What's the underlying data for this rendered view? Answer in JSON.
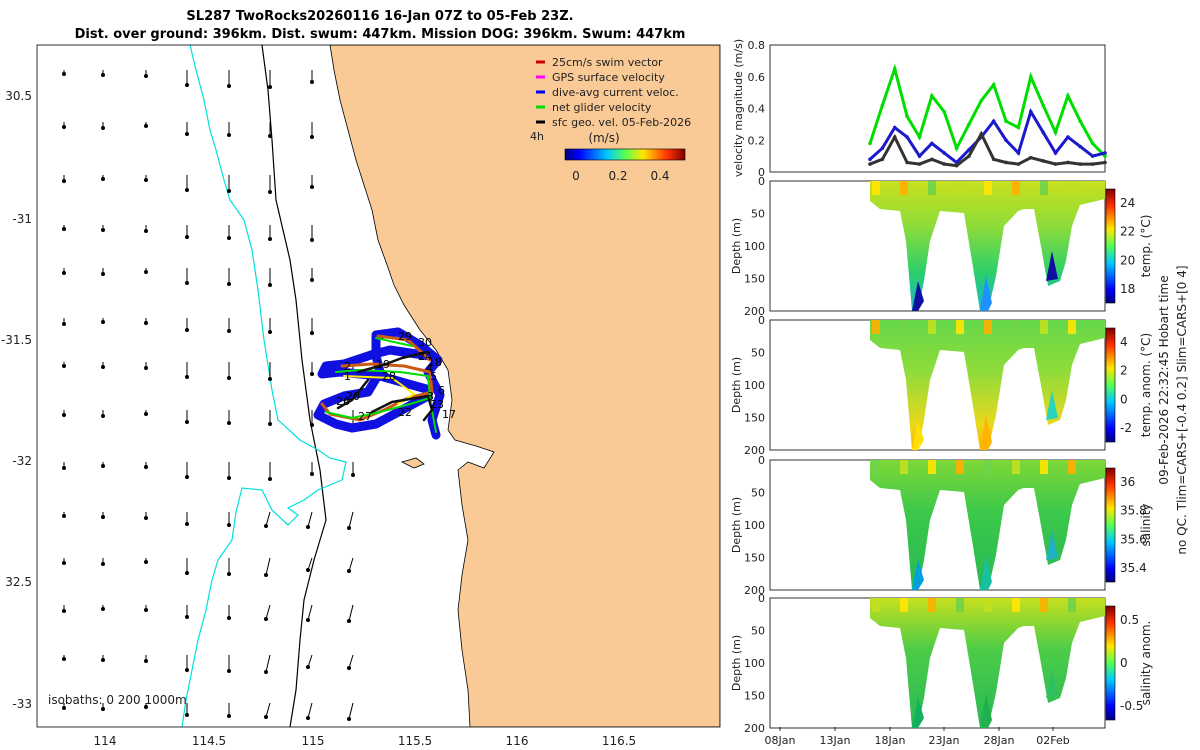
{
  "title": {
    "line1": "SL287 TwoRocks20260116 16-Jan 07Z to 05-Feb 23Z.",
    "line2": "Dist. over ground: 396km. Dist. swum: 447km. Mission DOG: 396km. Swum: 447km"
  },
  "map": {
    "lon_ticks": [
      "114",
      "114.5",
      "115",
      "115.5",
      "116",
      "116.5"
    ],
    "lat_ticks": [
      "30.5",
      "-31",
      "-31.5",
      "-32",
      "32.5",
      "-33"
    ],
    "isobaths_label": "isobaths: 0   200  1000m",
    "legend": [
      {
        "label": "25cm/s swim vector",
        "color": "#cc0000"
      },
      {
        "label": "GPS surface velocity",
        "color": "#ff00ff"
      },
      {
        "label": "dive-avg current veloc.",
        "color": "#0000ff"
      },
      {
        "label": "net glider velocity",
        "color": "#00dd00"
      },
      {
        "label": "sfc geo. vel. 05-Feb-2026",
        "color": "#000000"
      }
    ],
    "scale_label": "4h",
    "colorbar": {
      "label": "(m/s)",
      "ticks": [
        "0",
        "0.2",
        "0.4"
      ]
    },
    "track_labels": [
      "29",
      "30",
      "24",
      "18",
      "2",
      "19",
      "4",
      "5",
      "28",
      "1",
      "6",
      "20",
      "26",
      "3",
      "27",
      "22",
      "23",
      "17"
    ]
  },
  "chart_data": [
    {
      "type": "line",
      "ylabel": "velocity magnitude (m/s)",
      "ylim": [
        0,
        0.8
      ],
      "yticks": [
        "0",
        "0.2",
        "0.4",
        "0.6",
        "0.8"
      ],
      "x": [
        0,
        1,
        2,
        3,
        4,
        5,
        6,
        7,
        8,
        9,
        10,
        11,
        12,
        13,
        14,
        15,
        16,
        17,
        18,
        19
      ],
      "series": [
        {
          "name": "net glider velocity",
          "color": "#00dd00",
          "values": [
            0.18,
            0.42,
            0.65,
            0.35,
            0.22,
            0.48,
            0.38,
            0.15,
            0.3,
            0.45,
            0.55,
            0.32,
            0.28,
            0.6,
            0.42,
            0.25,
            0.48,
            0.32,
            0.18,
            0.1
          ]
        },
        {
          "name": "dive-avg current veloc.",
          "color": "#1a1acc",
          "values": [
            0.08,
            0.15,
            0.28,
            0.22,
            0.1,
            0.18,
            0.12,
            0.06,
            0.14,
            0.22,
            0.32,
            0.2,
            0.12,
            0.38,
            0.25,
            0.12,
            0.22,
            0.16,
            0.1,
            0.12
          ]
        },
        {
          "name": "sfc geo. vel.",
          "color": "#333333",
          "values": [
            0.05,
            0.08,
            0.22,
            0.06,
            0.05,
            0.08,
            0.05,
            0.04,
            0.1,
            0.24,
            0.08,
            0.06,
            0.05,
            0.09,
            0.07,
            0.05,
            0.06,
            0.05,
            0.05,
            0.06
          ]
        }
      ]
    },
    {
      "type": "heatmap",
      "ylabel": "Depth (m)",
      "ylim": [
        200,
        0
      ],
      "yticks": [
        "0",
        "50",
        "100",
        "150",
        "200"
      ],
      "cbar_label": "temp. (°C)",
      "cbar_ticks": [
        "24",
        "22",
        "20",
        "18"
      ]
    },
    {
      "type": "heatmap",
      "ylabel": "Depth (m)",
      "ylim": [
        200,
        0
      ],
      "yticks": [
        "0",
        "50",
        "100",
        "150",
        "200"
      ],
      "cbar_label": "temp. anom. (°C)",
      "cbar_ticks": [
        "4",
        "2",
        "0",
        "-2"
      ]
    },
    {
      "type": "heatmap",
      "ylabel": "Depth (m)",
      "ylim": [
        200,
        0
      ],
      "yticks": [
        "0",
        "50",
        "100",
        "150",
        "200"
      ],
      "cbar_label": "salinity",
      "cbar_ticks": [
        "36",
        "35.8",
        "35.6",
        "35.4"
      ]
    },
    {
      "type": "heatmap",
      "ylabel": "Depth (m)",
      "ylim": [
        200,
        0
      ],
      "yticks": [
        "0",
        "50",
        "100",
        "150",
        "200"
      ],
      "cbar_label": "salinity anom.",
      "cbar_ticks": [
        "0.5",
        "0",
        "-0.5"
      ]
    }
  ],
  "time_axis": {
    "ticks": [
      "08Jan",
      "13Jan",
      "18Jan",
      "23Jan",
      "28Jan",
      "02Feb"
    ]
  },
  "side_note_1": "09-Feb-2026 22:32:45 Hobart time",
  "side_note_2": "no QC. Tlim=CARS+[-0.4 0.2] Slim=CARS+[0 4]"
}
